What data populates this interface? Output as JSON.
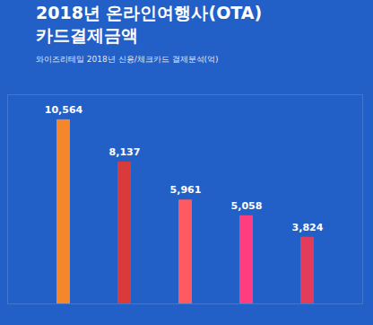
{
  "chart_data": {
    "type": "bar",
    "title": "2018년 온라인여행사(OTA)\n카드결제금액",
    "subtitle": "와이즈리테일 2018년 신용/체크카드 결제분석(억)",
    "categories": [
      null,
      null,
      null,
      null,
      null
    ],
    "values": [
      10564,
      8137,
      5961,
      5058,
      3824
    ],
    "value_labels": [
      "10,564",
      "8,137",
      "5,961",
      "5,058",
      "3,824"
    ],
    "colors": [
      "#f5862a",
      "#d93a3a",
      "#ff5a5f",
      "#ff3d7f",
      "#e23b5c"
    ],
    "ylim": [
      0,
      12000
    ],
    "yticks": [],
    "data_labels": true,
    "tick_labels": false,
    "grid": false
  }
}
